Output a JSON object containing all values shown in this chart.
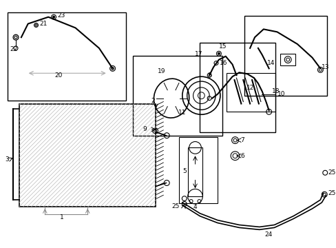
{
  "bg_color": "#ffffff",
  "line_color": "#000000",
  "gray_color": "#888888",
  "light_gray": "#cccccc",
  "mid_gray": "#aaaaaa"
}
